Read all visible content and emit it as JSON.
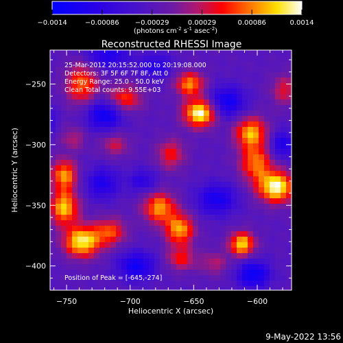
{
  "chart_data": {
    "type": "heatmap",
    "title": "Reconstructed RHESSI Image",
    "xlabel": "Heliocentric X (arcsec)",
    "ylabel": "Heliocentric Y (arcsec)",
    "xlim": [
      -763,
      -573
    ],
    "ylim": [
      -420,
      -222
    ],
    "x_ticks": [
      -750,
      -700,
      -650,
      -600
    ],
    "y_ticks": [
      -400,
      -350,
      -300,
      -250
    ],
    "colorbar": {
      "range": [
        -0.0014,
        0.0014
      ],
      "ticks": [
        "-0.0014",
        "-0.00086",
        "-0.00029",
        "0.00029",
        "0.00086",
        "0.0014"
      ],
      "units_prefix": "(photons cm",
      "units_sup1": "-2",
      "units_mid1": " s",
      "units_sup2": "-1",
      "units_mid2": " asec",
      "units_sup3": "-2",
      "units_suffix": ")"
    },
    "annotations": [
      "25-Mar-2012 20:15:52.000 to 20:19:08.000",
      "Detectors: 3F 5F 6F 7F 8F, Att 0",
      "Energy Range: 25.0 - 50.0 keV",
      "Clean      Total counts: 9.55E+03"
    ],
    "peak_label": "Position of Peak = [-645,-274]",
    "sources": [
      {
        "x": -645,
        "y": -274,
        "amp": 1.0,
        "sx": 9,
        "sy": 8
      },
      {
        "x": -653,
        "y": -250,
        "amp": 0.7,
        "sx": 8,
        "sy": 7
      },
      {
        "x": -605,
        "y": -290,
        "amp": 0.75,
        "sx": 9,
        "sy": 9
      },
      {
        "x": -585,
        "y": -335,
        "amp": 0.98,
        "sx": 10,
        "sy": 9
      },
      {
        "x": -601,
        "y": -315,
        "amp": 0.65,
        "sx": 9,
        "sy": 11
      },
      {
        "x": -738,
        "y": -380,
        "amp": 0.92,
        "sx": 10,
        "sy": 9
      },
      {
        "x": -752,
        "y": -352,
        "amp": 0.8,
        "sx": 8,
        "sy": 10
      },
      {
        "x": -752,
        "y": -325,
        "amp": 0.72,
        "sx": 7,
        "sy": 9
      },
      {
        "x": -716,
        "y": -372,
        "amp": 0.55,
        "sx": 9,
        "sy": 8
      },
      {
        "x": -677,
        "y": -352,
        "amp": 0.72,
        "sx": 9,
        "sy": 9
      },
      {
        "x": -661,
        "y": -370,
        "amp": 0.75,
        "sx": 8,
        "sy": 9
      },
      {
        "x": -660,
        "y": -394,
        "amp": 0.45,
        "sx": 8,
        "sy": 7
      },
      {
        "x": -612,
        "y": -382,
        "amp": 0.85,
        "sx": 7,
        "sy": 7
      },
      {
        "x": -738,
        "y": -250,
        "amp": 0.62,
        "sx": 9,
        "sy": 12
      },
      {
        "x": -705,
        "y": -262,
        "amp": 0.55,
        "sx": 10,
        "sy": 8
      },
      {
        "x": -668,
        "y": -308,
        "amp": 0.45,
        "sx": 8,
        "sy": 9
      },
      {
        "x": -712,
        "y": -300,
        "amp": 0.35,
        "sx": 8,
        "sy": 7
      },
      {
        "x": -578,
        "y": -255,
        "amp": 0.4,
        "sx": 8,
        "sy": 9
      },
      {
        "x": -745,
        "y": -295,
        "amp": 0.3,
        "sx": 7,
        "sy": 7
      },
      {
        "x": -634,
        "y": -398,
        "amp": 0.3,
        "sx": 8,
        "sy": 7
      },
      {
        "x": -718,
        "y": -226,
        "amp": -0.45,
        "sx": 12,
        "sy": 8
      },
      {
        "x": -720,
        "y": -275,
        "amp": -0.6,
        "sx": 10,
        "sy": 9
      },
      {
        "x": -680,
        "y": -235,
        "amp": -0.4,
        "sx": 9,
        "sy": 7
      },
      {
        "x": -624,
        "y": -265,
        "amp": -0.55,
        "sx": 10,
        "sy": 9
      },
      {
        "x": -632,
        "y": -345,
        "amp": -0.5,
        "sx": 11,
        "sy": 9
      },
      {
        "x": -722,
        "y": -332,
        "amp": -0.45,
        "sx": 9,
        "sy": 9
      },
      {
        "x": -695,
        "y": -400,
        "amp": -0.55,
        "sx": 10,
        "sy": 8
      },
      {
        "x": -603,
        "y": -407,
        "amp": -0.6,
        "sx": 9,
        "sy": 8
      },
      {
        "x": -580,
        "y": -300,
        "amp": -0.45,
        "sx": 8,
        "sy": 8
      },
      {
        "x": -690,
        "y": -330,
        "amp": -0.35,
        "sx": 8,
        "sy": 7
      },
      {
        "x": -766,
        "y": -280,
        "amp": -0.3,
        "sx": 6,
        "sy": 8
      }
    ]
  },
  "footer": {
    "date": "9-May-2022 13:56"
  },
  "colors": {
    "background": "#000000",
    "text": "#ffffff"
  }
}
